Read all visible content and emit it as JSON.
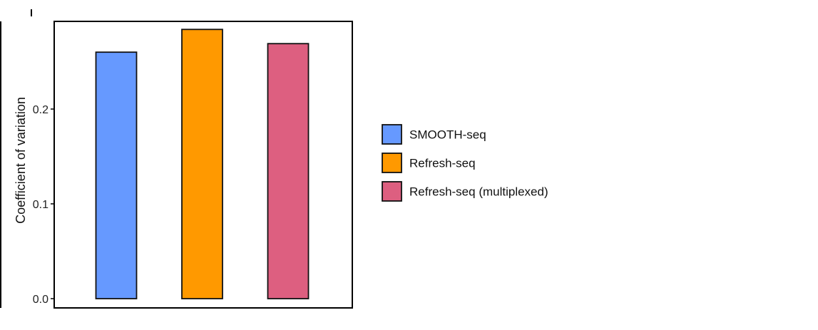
{
  "chart_data": {
    "type": "bar",
    "title": "",
    "xlabel": "",
    "ylabel": "Coefficient of variation",
    "categories": [
      "SMOOTH-seq",
      "Refresh-seq",
      "Refresh-seq (multiplexed)"
    ],
    "values": [
      0.26,
      0.284,
      0.269
    ],
    "colors": [
      "#6699FF",
      "#FF9900",
      "#DD5F80"
    ],
    "ylim": [
      0,
      0.295
    ],
    "yticks": [
      0.0,
      0.1,
      0.2
    ],
    "ytick_labels": [
      "0.0",
      "0.1",
      "0.2"
    ],
    "grid": false,
    "legend_position": "right"
  }
}
